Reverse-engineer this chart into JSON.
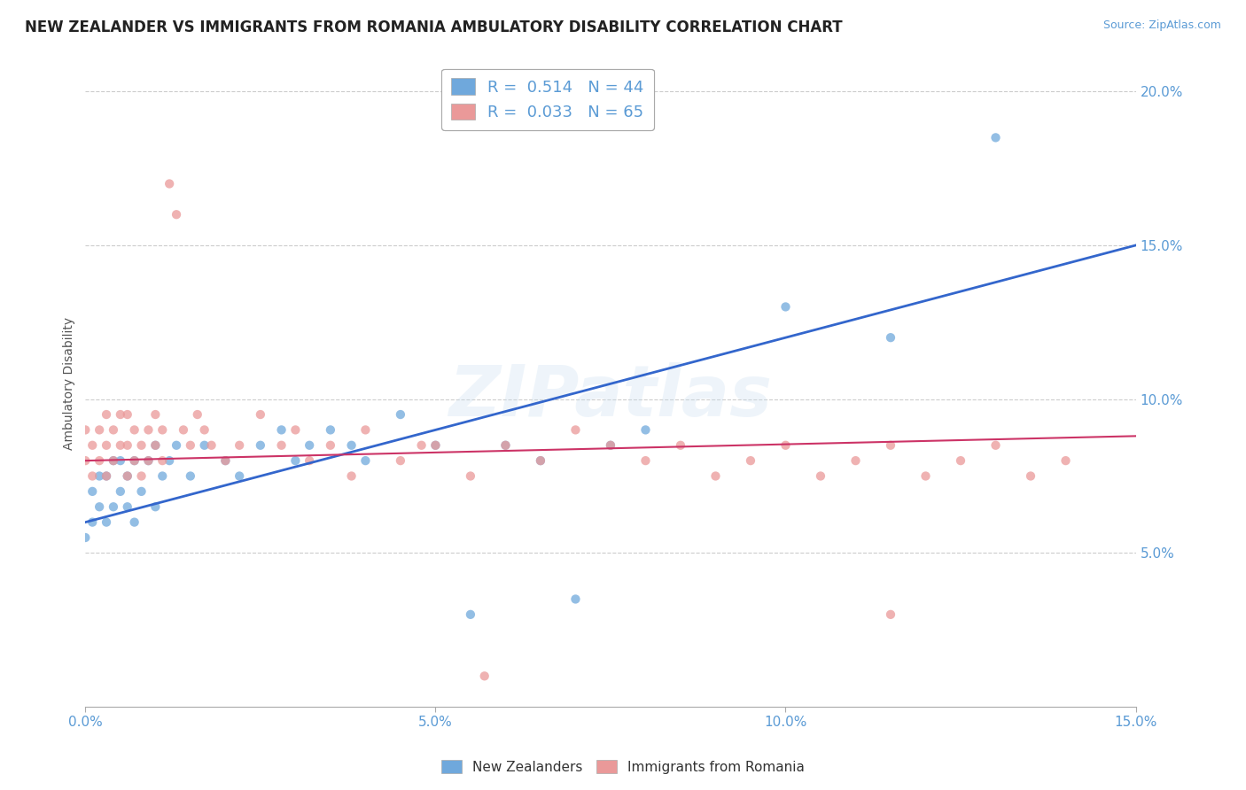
{
  "title": "NEW ZEALANDER VS IMMIGRANTS FROM ROMANIA AMBULATORY DISABILITY CORRELATION CHART",
  "source_text": "Source: ZipAtlas.com",
  "ylabel": "Ambulatory Disability",
  "x_min": 0.0,
  "x_max": 0.15,
  "y_min": 0.0,
  "y_max": 0.21,
  "x_ticks": [
    0.0,
    0.05,
    0.1,
    0.15
  ],
  "x_tick_labels": [
    "0.0%",
    "5.0%",
    "10.0%",
    "15.0%"
  ],
  "y_ticks_right": [
    0.05,
    0.1,
    0.15,
    0.2
  ],
  "y_tick_labels_right": [
    "5.0%",
    "10.0%",
    "15.0%",
    "20.0%"
  ],
  "legend_label_blue": "R =  0.514   N = 44",
  "legend_label_pink": "R =  0.033   N = 65",
  "legend_bottom_blue": "New Zealanders",
  "legend_bottom_pink": "Immigrants from Romania",
  "blue_color": "#6fa8dc",
  "pink_color": "#ea9999",
  "blue_line_color": "#3366cc",
  "pink_line_color": "#cc3366",
  "watermark": "ZIPatlas",
  "blue_line_x0": 0.0,
  "blue_line_y0": 0.06,
  "blue_line_x1": 0.15,
  "blue_line_y1": 0.15,
  "pink_line_x0": 0.0,
  "pink_line_y0": 0.08,
  "pink_line_x1": 0.15,
  "pink_line_y1": 0.088,
  "blue_x": [
    0.0,
    0.001,
    0.001,
    0.002,
    0.002,
    0.003,
    0.003,
    0.004,
    0.004,
    0.005,
    0.005,
    0.006,
    0.006,
    0.007,
    0.007,
    0.008,
    0.009,
    0.01,
    0.01,
    0.011,
    0.012,
    0.013,
    0.015,
    0.017,
    0.02,
    0.022,
    0.025,
    0.028,
    0.03,
    0.032,
    0.035,
    0.038,
    0.04,
    0.045,
    0.05,
    0.055,
    0.06,
    0.065,
    0.07,
    0.075,
    0.08,
    0.1,
    0.115,
    0.13
  ],
  "blue_y": [
    0.055,
    0.06,
    0.07,
    0.065,
    0.075,
    0.06,
    0.075,
    0.065,
    0.08,
    0.07,
    0.08,
    0.065,
    0.075,
    0.06,
    0.08,
    0.07,
    0.08,
    0.065,
    0.085,
    0.075,
    0.08,
    0.085,
    0.075,
    0.085,
    0.08,
    0.075,
    0.085,
    0.09,
    0.08,
    0.085,
    0.09,
    0.085,
    0.08,
    0.095,
    0.085,
    0.03,
    0.085,
    0.08,
    0.035,
    0.085,
    0.09,
    0.13,
    0.12,
    0.185
  ],
  "pink_x": [
    0.0,
    0.0,
    0.001,
    0.001,
    0.002,
    0.002,
    0.003,
    0.003,
    0.003,
    0.004,
    0.004,
    0.005,
    0.005,
    0.006,
    0.006,
    0.006,
    0.007,
    0.007,
    0.008,
    0.008,
    0.009,
    0.009,
    0.01,
    0.01,
    0.011,
    0.011,
    0.012,
    0.013,
    0.014,
    0.015,
    0.016,
    0.017,
    0.018,
    0.02,
    0.022,
    0.025,
    0.028,
    0.03,
    0.032,
    0.035,
    0.038,
    0.04,
    0.045,
    0.05,
    0.055,
    0.06,
    0.065,
    0.07,
    0.075,
    0.08,
    0.085,
    0.09,
    0.095,
    0.1,
    0.105,
    0.11,
    0.115,
    0.12,
    0.125,
    0.13,
    0.135,
    0.14,
    0.048,
    0.057,
    0.115
  ],
  "pink_y": [
    0.08,
    0.09,
    0.075,
    0.085,
    0.09,
    0.08,
    0.085,
    0.095,
    0.075,
    0.08,
    0.09,
    0.085,
    0.095,
    0.075,
    0.085,
    0.095,
    0.08,
    0.09,
    0.075,
    0.085,
    0.08,
    0.09,
    0.085,
    0.095,
    0.08,
    0.09,
    0.17,
    0.16,
    0.09,
    0.085,
    0.095,
    0.09,
    0.085,
    0.08,
    0.085,
    0.095,
    0.085,
    0.09,
    0.08,
    0.085,
    0.075,
    0.09,
    0.08,
    0.085,
    0.075,
    0.085,
    0.08,
    0.09,
    0.085,
    0.08,
    0.085,
    0.075,
    0.08,
    0.085,
    0.075,
    0.08,
    0.085,
    0.075,
    0.08,
    0.085,
    0.075,
    0.08,
    0.085,
    0.01,
    0.03
  ]
}
